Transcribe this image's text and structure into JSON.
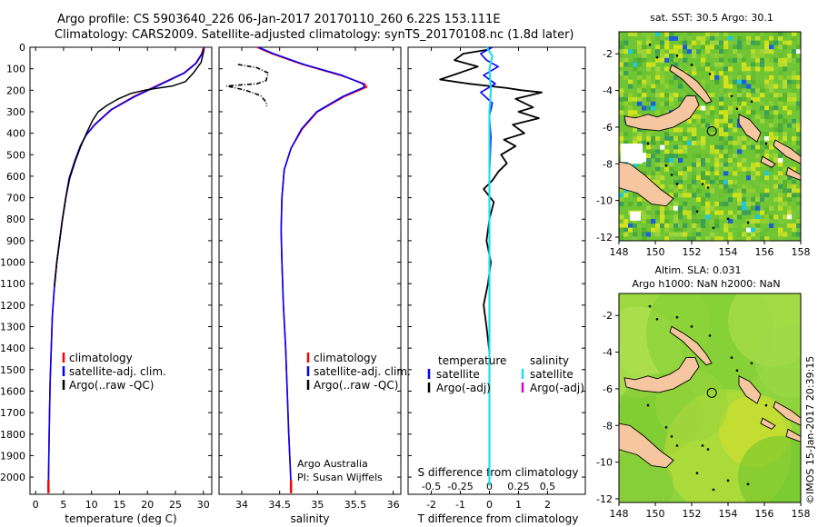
{
  "header": {
    "title_line1": "Argo profile: CS 5903640_226 06-Jan-2017 20170110_260 6.22S 153.111E",
    "title_line2": "Climatology: CARS2009. Satellite-adjusted climatology: synTS_20170108.nc (1.8d later)"
  },
  "colors": {
    "climatology": "#ff0000",
    "satellite": "#0000ff",
    "argo": "#000000",
    "sat_salinity": "#22ddee",
    "argo_adj_sal": "#dd00dd",
    "land": "#f5c6a0"
  },
  "chart_data": [
    {
      "type": "line",
      "id": "temperature",
      "xlabel": "temperature (deg C)",
      "xlim": [
        -1,
        31.5
      ],
      "ylim": [
        2080,
        0
      ],
      "xticks": [
        0,
        5,
        10,
        15,
        20,
        25,
        30
      ],
      "xtick_labels": [
        "0",
        "5",
        "10",
        "15",
        "20",
        "25",
        "30"
      ],
      "yticks": [
        0,
        100,
        200,
        300,
        400,
        500,
        600,
        700,
        800,
        900,
        1000,
        1100,
        1200,
        1300,
        1400,
        1500,
        1600,
        1700,
        1800,
        1900,
        2000
      ],
      "ytick_labels": [
        "0",
        "100",
        "200",
        "300",
        "400",
        "500",
        "600",
        "700",
        "800",
        "900",
        "1000",
        "1100",
        "1200",
        "1300",
        "1400",
        "1500",
        "1600",
        "1700",
        "1800",
        "1900",
        "2000"
      ],
      "legend": [
        "climatology",
        "satellite-adj. clim.",
        "Argo(..raw -QC)"
      ],
      "series": [
        {
          "name": "climatology",
          "color": "#ff0000",
          "x": [
            30.0,
            29.7,
            28.6,
            26.5,
            22.0,
            17.5,
            13.5,
            10.5,
            9.0,
            8.0,
            7.0,
            6.0,
            5.4,
            4.8,
            4.3,
            3.8,
            3.4,
            3.0,
            2.8,
            2.6,
            2.5,
            2.4,
            2.35,
            2.3
          ],
          "y": [
            0,
            30,
            75,
            120,
            175,
            230,
            290,
            360,
            410,
            460,
            530,
            610,
            700,
            800,
            900,
            1000,
            1100,
            1250,
            1400,
            1550,
            1700,
            1850,
            1950,
            2040
          ]
        },
        {
          "name": "satellite-adj. clim.",
          "color": "#0000ff",
          "x": [
            30.2,
            29.8,
            28.7,
            26.6,
            22.2,
            17.7,
            13.6,
            10.6,
            9.0,
            8.0,
            7.0,
            6.0,
            5.4,
            4.8,
            4.3,
            3.8,
            3.4,
            3.0,
            2.8,
            2.6,
            2.5,
            2.4,
            2.35,
            2.3
          ],
          "y": [
            0,
            30,
            75,
            120,
            175,
            230,
            290,
            360,
            410,
            460,
            530,
            610,
            700,
            800,
            900,
            1000,
            1100,
            1250,
            1400,
            1550,
            1700,
            1850,
            1950,
            2040
          ]
        },
        {
          "name": "Argo(..raw -QC)",
          "color": "#000000",
          "x": [
            30.1,
            29.9,
            29.6,
            28.2,
            26.8,
            24.5,
            22.0,
            19.5,
            17.0,
            14.8,
            12.8,
            11.2,
            10.2,
            9.1,
            8.1,
            7.1,
            6.1,
            5.4,
            4.8,
            4.3,
            3.8,
            3.4
          ],
          "y": [
            10,
            35,
            70,
            120,
            160,
            180,
            190,
            200,
            215,
            240,
            270,
            300,
            340,
            400,
            460,
            530,
            610,
            700,
            800,
            900,
            1000,
            1110
          ]
        }
      ]
    },
    {
      "type": "line",
      "id": "salinity",
      "xlabel": "salinity",
      "xlim": [
        33.7,
        36.1
      ],
      "ylim": [
        2080,
        0
      ],
      "xticks": [
        34,
        34.5,
        35,
        35.5,
        36
      ],
      "xtick_labels": [
        "34",
        "34.5",
        "35",
        "35.5",
        "36"
      ],
      "legend": [
        "climatology",
        "satellite-adj. clim.",
        "Argo(..raw -QC)"
      ],
      "series": [
        {
          "name": "climatology",
          "color": "#ff0000",
          "x": [
            34.2,
            34.4,
            34.8,
            35.3,
            35.62,
            35.65,
            35.35,
            35.0,
            34.8,
            34.65,
            34.56,
            34.53,
            34.52,
            34.53,
            34.55,
            34.58,
            34.6,
            34.62,
            34.64,
            34.65
          ],
          "y": [
            0,
            30,
            80,
            130,
            170,
            185,
            230,
            300,
            380,
            470,
            570,
            700,
            850,
            1000,
            1200,
            1400,
            1600,
            1800,
            1950,
            2040
          ]
        },
        {
          "name": "satellite-adj. clim.",
          "color": "#0000ff",
          "x": [
            34.22,
            34.42,
            34.82,
            35.32,
            35.6,
            35.62,
            35.33,
            34.99,
            34.79,
            34.65,
            34.56,
            34.53,
            34.52,
            34.53,
            34.55,
            34.58,
            34.6,
            34.62,
            34.64,
            34.65
          ],
          "y": [
            0,
            30,
            80,
            130,
            170,
            185,
            230,
            300,
            380,
            470,
            570,
            700,
            850,
            1000,
            1200,
            1400,
            1600,
            1800,
            1950,
            2040
          ]
        },
        {
          "name": "Argo(..raw -QC)",
          "color": "#000000",
          "x": [
            33.95,
            34.2,
            34.35,
            34.32,
            34.2,
            33.8,
            34.05,
            34.25,
            34.32,
            34.33
          ],
          "y": [
            80,
            95,
            120,
            155,
            170,
            180,
            200,
            225,
            255,
            275
          ]
        }
      ],
      "annotations": [
        "Argo Australia",
        "PI: Susan Wijffels"
      ]
    },
    {
      "type": "line",
      "id": "difference",
      "xlabel": "T difference from climatology",
      "xlabel_top": "S difference from climatology",
      "xlim": [
        -2.8,
        3.3
      ],
      "ylim": [
        2080,
        0
      ],
      "xticks": [
        -2,
        -1,
        0,
        1,
        2
      ],
      "xtick_labels": [
        "-2",
        "-1",
        "0",
        "1",
        "2"
      ],
      "sticks": [
        -0.5,
        -0.25,
        0,
        0.25,
        0.5
      ],
      "stick_labels": [
        "-0.5",
        "-0.25",
        "0",
        "0.25",
        "0.5"
      ],
      "legend_groups": [
        {
          "heading": "temperature",
          "items": [
            "satellite",
            "Argo(-adj)"
          ]
        },
        {
          "heading": "salinity",
          "items": [
            "satellite",
            "Argo(-adj)"
          ]
        }
      ],
      "series": [
        {
          "name": "T satellite",
          "color": "#0000ff",
          "x": [
            0.1,
            -0.3,
            -0.1,
            0.3,
            -0.2,
            0.2,
            -0.3,
            0.1,
            0.0,
            0.05,
            0.0,
            0.0,
            0.0,
            0.0,
            0.0,
            0.0
          ],
          "y": [
            0,
            30,
            60,
            90,
            130,
            170,
            210,
            260,
            320,
            420,
            600,
            800,
            1000,
            1300,
            1700,
            2040
          ]
        },
        {
          "name": "T Argo(-adj)",
          "color": "#000000",
          "x": [
            0.0,
            -0.9,
            -1.2,
            -0.4,
            -1.7,
            -0.7,
            0.6,
            1.1,
            1.8,
            0.9,
            1.5,
            1.0,
            1.7,
            0.8,
            1.2,
            0.5,
            0.9,
            0.4,
            0.6,
            0.3,
            0.1,
            -0.2,
            0.15,
            0.0,
            -0.1,
            0.05,
            -0.05,
            -0.2,
            -0.1,
            0.0
          ],
          "y": [
            10,
            30,
            60,
            90,
            150,
            170,
            190,
            200,
            210,
            240,
            280,
            300,
            330,
            360,
            400,
            430,
            460,
            500,
            540,
            580,
            620,
            660,
            720,
            800,
            900,
            1000,
            1100,
            1200,
            1300,
            1420
          ]
        },
        {
          "name": "S satellite",
          "color": "#22ddee",
          "x": [
            -0.1,
            0.1,
            0.0,
            0.05,
            0.0,
            0.0,
            0.0,
            0.0,
            0.0,
            0.0
          ],
          "y": [
            0,
            40,
            100,
            200,
            300,
            500,
            800,
            1200,
            1600,
            2040
          ]
        }
      ]
    },
    {
      "type": "heatmap",
      "id": "sst_map",
      "title": "sat. SST: 30.5 Argo: 30.1",
      "xlim": [
        148,
        158
      ],
      "ylim": [
        -12.2,
        -0.8
      ],
      "xticks": [
        148,
        150,
        152,
        154,
        156,
        158
      ],
      "xtick_labels": [
        "148",
        "150",
        "152",
        "154",
        "156",
        "158"
      ],
      "yticks": [
        -2,
        -4,
        -6,
        -8,
        -10,
        -12
      ],
      "ytick_labels": [
        "-2",
        "-4",
        "-6",
        "-8",
        "-10",
        "-12"
      ],
      "float_position": [
        153.111,
        -6.22
      ]
    },
    {
      "type": "heatmap",
      "id": "sla_map",
      "title_line1": "Altim. SLA: 0.031",
      "title_line2": "Argo h1000: NaN h2000: NaN",
      "xlim": [
        148,
        158
      ],
      "ylim": [
        -12.2,
        -0.8
      ],
      "xticks": [
        148,
        150,
        152,
        154,
        156,
        158
      ],
      "xtick_labels": [
        "148",
        "150",
        "152",
        "154",
        "156",
        "158"
      ],
      "yticks": [
        -2,
        -4,
        -6,
        -8,
        -10,
        -12
      ],
      "ytick_labels": [
        "-2",
        "-4",
        "-6",
        "-8",
        "-10",
        "-12"
      ],
      "float_position": [
        153.111,
        -6.22
      ]
    }
  ],
  "stamp": "©IMOS 15-Jan-2017 20:39:15"
}
